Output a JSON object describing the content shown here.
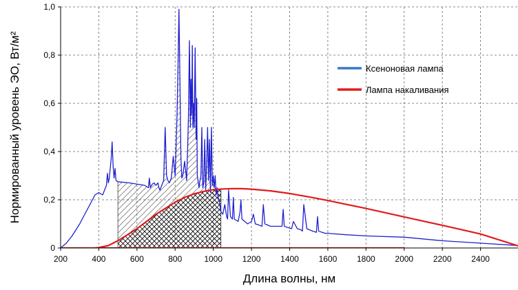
{
  "chart_data": {
    "type": "line",
    "title": "",
    "xlabel": "Длина волны, нм",
    "ylabel": "Нормированный уровень ЭО, Вт/м²",
    "xlim": [
      200,
      2600
    ],
    "ylim": [
      0,
      1.0
    ],
    "x_ticks": [
      200,
      400,
      600,
      800,
      1000,
      1200,
      1400,
      1600,
      1800,
      2000,
      2200,
      2400
    ],
    "x_tick_labels": [
      "200",
      "400",
      "600",
      "800",
      "1000",
      "1200",
      "1400",
      "1600",
      "1800",
      "2000",
      "2200",
      "2400"
    ],
    "y_ticks": [
      0,
      0.2,
      0.4,
      0.6,
      0.8,
      1.0
    ],
    "y_tick_labels": [
      "0",
      "0,2",
      "0,4",
      "0,6",
      "0,8",
      "1,0"
    ],
    "grid": "dashed",
    "legend_position": "right",
    "hatched_regions": [
      {
        "series": "Ксеноновая лампа",
        "x_range": [
          500,
          1040
        ],
        "pattern": "diagonal"
      },
      {
        "series": "Лампа накаливания",
        "x_range": [
          500,
          1040
        ],
        "pattern": "crosshatch"
      }
    ],
    "series": [
      {
        "name": "Ксеноновая лампа",
        "color": "#1f1fd0",
        "x": [
          200,
          230,
          260,
          300,
          340,
          380,
          400,
          420,
          440,
          445,
          450,
          455,
          460,
          465,
          470,
          475,
          480,
          485,
          490,
          500,
          560,
          640,
          660,
          665,
          670,
          680,
          690,
          700,
          710,
          715,
          720,
          730,
          740,
          748,
          755,
          762,
          770,
          780,
          790,
          800,
          810,
          815,
          820,
          825,
          830,
          835,
          840,
          850,
          860,
          865,
          870,
          875,
          880,
          883,
          885,
          888,
          890,
          893,
          896,
          900,
          905,
          910,
          913,
          916,
          920,
          925,
          930,
          935,
          940,
          945,
          950,
          955,
          960,
          965,
          970,
          975,
          980,
          985,
          990,
          995,
          1000,
          1005,
          1010,
          1015,
          1020,
          1025,
          1030,
          1040,
          1050,
          1060,
          1070,
          1075,
          1080,
          1090,
          1100,
          1105,
          1110,
          1130,
          1140,
          1145,
          1150,
          1180,
          1200,
          1210,
          1220,
          1240,
          1255,
          1262,
          1270,
          1300,
          1340,
          1360,
          1366,
          1372,
          1390,
          1410,
          1420,
          1440,
          1460,
          1467,
          1474,
          1490,
          1520,
          1540,
          1546,
          1552,
          1570,
          1590,
          1600,
          1610,
          1700,
          1800,
          2000,
          2200,
          2400,
          2600
        ],
        "y": [
          0.0,
          0.02,
          0.05,
          0.1,
          0.16,
          0.22,
          0.23,
          0.22,
          0.26,
          0.31,
          0.27,
          0.29,
          0.33,
          0.37,
          0.44,
          0.34,
          0.29,
          0.33,
          0.28,
          0.275,
          0.27,
          0.26,
          0.25,
          0.29,
          0.25,
          0.265,
          0.27,
          0.26,
          0.27,
          0.25,
          0.24,
          0.26,
          0.28,
          0.5,
          0.3,
          0.28,
          0.27,
          0.29,
          0.38,
          0.3,
          0.55,
          0.75,
          0.99,
          0.7,
          0.38,
          0.29,
          0.3,
          0.36,
          0.28,
          0.4,
          0.55,
          0.86,
          0.5,
          0.7,
          0.55,
          0.62,
          0.84,
          0.5,
          0.6,
          0.5,
          0.83,
          0.45,
          0.62,
          0.3,
          0.28,
          0.25,
          0.28,
          0.3,
          0.5,
          0.25,
          0.27,
          0.45,
          0.24,
          0.35,
          0.5,
          0.28,
          0.45,
          0.23,
          0.5,
          0.26,
          0.3,
          0.25,
          0.3,
          0.22,
          0.25,
          0.21,
          0.2,
          0.15,
          0.14,
          0.18,
          0.13,
          0.12,
          0.24,
          0.13,
          0.12,
          0.21,
          0.12,
          0.11,
          0.15,
          0.2,
          0.12,
          0.1,
          0.11,
          0.14,
          0.1,
          0.095,
          0.09,
          0.18,
          0.1,
          0.09,
          0.09,
          0.09,
          0.16,
          0.09,
          0.085,
          0.08,
          0.11,
          0.08,
          0.075,
          0.07,
          0.18,
          0.08,
          0.07,
          0.065,
          0.13,
          0.07,
          0.065,
          0.06,
          0.062,
          0.06,
          0.055,
          0.05,
          0.045,
          0.03,
          0.02,
          0.01
        ]
      },
      {
        "name": "Лампа накаливания",
        "color": "#e01b1b",
        "x": [
          200,
          380,
          400,
          450,
          500,
          550,
          600,
          650,
          700,
          750,
          800,
          850,
          900,
          950,
          1000,
          1050,
          1100,
          1150,
          1200,
          1300,
          1400,
          1500,
          1600,
          1800,
          2000,
          2200,
          2400,
          2600
        ],
        "y": [
          0,
          0,
          0.002,
          0.01,
          0.03,
          0.055,
          0.08,
          0.11,
          0.14,
          0.165,
          0.19,
          0.21,
          0.225,
          0.235,
          0.242,
          0.245,
          0.246,
          0.246,
          0.244,
          0.237,
          0.226,
          0.212,
          0.197,
          0.164,
          0.129,
          0.094,
          0.058,
          0.008
        ]
      }
    ]
  }
}
